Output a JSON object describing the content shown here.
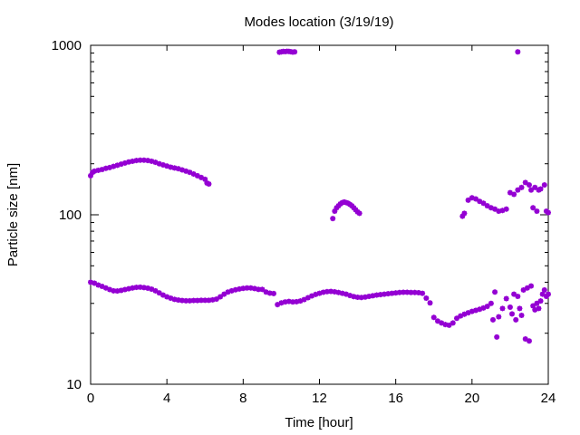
{
  "chart_data": {
    "type": "scatter",
    "title": "Modes location (3/19/19)",
    "xlabel": "Time [hour]",
    "ylabel": "Particle size [nm]",
    "xlim": [
      0,
      24
    ],
    "ylim": [
      10,
      1000
    ],
    "yscale": "log",
    "xticks": [
      0,
      4,
      8,
      12,
      16,
      20,
      24
    ],
    "yticks": [
      10,
      100,
      1000
    ],
    "grid": false,
    "legend": "none",
    "marker_color": "#9400d3",
    "series": [
      {
        "points": [
          [
            0.0,
            40
          ],
          [
            0.2,
            39.5
          ],
          [
            0.4,
            38.5
          ],
          [
            0.6,
            37.8
          ],
          [
            0.8,
            37
          ],
          [
            1.0,
            36.2
          ],
          [
            1.2,
            35.6
          ],
          [
            1.4,
            35.5
          ],
          [
            1.6,
            35.8
          ],
          [
            1.8,
            36.2
          ],
          [
            2.0,
            36.6
          ],
          [
            2.2,
            37
          ],
          [
            2.4,
            37.3
          ],
          [
            2.6,
            37.4
          ],
          [
            2.8,
            37.2
          ],
          [
            3.0,
            36.9
          ],
          [
            3.2,
            36.4
          ],
          [
            3.4,
            35.6
          ],
          [
            3.6,
            34.6
          ],
          [
            3.8,
            33.6
          ],
          [
            4.0,
            32.8
          ],
          [
            4.2,
            32.2
          ],
          [
            4.4,
            31.7
          ],
          [
            4.6,
            31.4
          ],
          [
            4.8,
            31.2
          ],
          [
            5.0,
            31.1
          ],
          [
            5.2,
            31.1
          ],
          [
            5.4,
            31.2
          ],
          [
            5.6,
            31.2
          ],
          [
            5.8,
            31.3
          ],
          [
            6.0,
            31.3
          ],
          [
            6.2,
            31.3
          ],
          [
            6.4,
            31.5
          ],
          [
            6.6,
            31.8
          ],
          [
            6.8,
            32.8
          ],
          [
            7.0,
            34
          ],
          [
            7.2,
            35
          ],
          [
            7.4,
            35.6
          ],
          [
            7.6,
            36.1
          ],
          [
            7.8,
            36.5
          ],
          [
            8.0,
            36.8
          ],
          [
            8.2,
            37
          ],
          [
            8.4,
            37
          ],
          [
            8.6,
            36.7
          ],
          [
            8.8,
            36.3
          ],
          [
            9.0,
            36.3
          ],
          [
            9.2,
            35
          ],
          [
            9.4,
            34.5
          ],
          [
            9.6,
            34.3
          ],
          [
            9.8,
            29.5
          ],
          [
            10.0,
            30.2
          ],
          [
            10.2,
            30.6
          ],
          [
            10.4,
            30.8
          ],
          [
            10.6,
            30.6
          ],
          [
            10.8,
            30.7
          ],
          [
            11.0,
            31
          ],
          [
            11.2,
            31.6
          ],
          [
            11.4,
            32.4
          ],
          [
            11.6,
            33.2
          ],
          [
            11.8,
            33.9
          ],
          [
            12.0,
            34.4
          ],
          [
            12.2,
            34.9
          ],
          [
            12.4,
            35.2
          ],
          [
            12.6,
            35.3
          ],
          [
            12.8,
            35.1
          ],
          [
            13.0,
            34.8
          ],
          [
            13.2,
            34.4
          ],
          [
            13.4,
            34
          ],
          [
            13.6,
            33.4
          ],
          [
            13.8,
            32.9
          ],
          [
            14.0,
            32.6
          ],
          [
            14.2,
            32.5
          ],
          [
            14.4,
            32.7
          ],
          [
            14.6,
            33
          ],
          [
            14.8,
            33.3
          ],
          [
            15.0,
            33.6
          ],
          [
            15.2,
            33.8
          ],
          [
            15.4,
            34
          ],
          [
            15.6,
            34.2
          ],
          [
            15.8,
            34.4
          ],
          [
            16.0,
            34.6
          ],
          [
            16.2,
            34.8
          ],
          [
            16.4,
            34.9
          ],
          [
            16.6,
            34.9
          ],
          [
            16.8,
            34.8
          ],
          [
            17.0,
            34.8
          ],
          [
            17.2,
            34.7
          ],
          [
            17.4,
            34.4
          ],
          [
            17.6,
            32.2
          ],
          [
            17.8,
            30.2
          ],
          [
            18.0,
            24.8
          ],
          [
            18.2,
            23.6
          ],
          [
            18.4,
            23
          ],
          [
            18.6,
            22.5
          ],
          [
            18.8,
            22.3
          ],
          [
            19.0,
            23
          ],
          [
            19.2,
            24.5
          ],
          [
            19.4,
            25.3
          ],
          [
            19.6,
            25.9
          ],
          [
            19.8,
            26.4
          ],
          [
            20.0,
            26.9
          ],
          [
            20.2,
            27.3
          ],
          [
            20.4,
            27.7
          ],
          [
            20.6,
            28.2
          ],
          [
            20.8,
            28.8
          ],
          [
            21.0,
            30
          ],
          [
            21.1,
            24
          ],
          [
            21.2,
            35
          ],
          [
            21.3,
            19
          ],
          [
            21.4,
            25
          ],
          [
            21.6,
            28
          ],
          [
            21.8,
            32
          ],
          [
            22.0,
            28.5
          ],
          [
            22.1,
            26
          ],
          [
            22.2,
            34
          ],
          [
            22.3,
            24
          ],
          [
            22.4,
            33
          ],
          [
            22.5,
            28
          ],
          [
            22.6,
            25.5
          ],
          [
            22.7,
            36
          ],
          [
            22.8,
            18.5
          ],
          [
            22.9,
            37
          ],
          [
            23.0,
            18
          ],
          [
            23.1,
            38
          ],
          [
            23.2,
            29
          ],
          [
            23.3,
            27.5
          ],
          [
            23.4,
            30
          ],
          [
            23.5,
            28
          ],
          [
            23.6,
            31
          ],
          [
            23.7,
            34
          ],
          [
            23.8,
            36
          ],
          [
            23.9,
            33
          ],
          [
            24.0,
            34
          ]
        ]
      },
      {
        "points": [
          [
            0.0,
            170
          ],
          [
            0.1,
            178
          ],
          [
            0.2,
            181
          ],
          [
            0.4,
            183
          ],
          [
            0.6,
            185
          ],
          [
            0.8,
            188
          ],
          [
            1.0,
            190
          ],
          [
            1.2,
            193
          ],
          [
            1.4,
            196
          ],
          [
            1.6,
            199
          ],
          [
            1.8,
            202
          ],
          [
            2.0,
            205
          ],
          [
            2.2,
            207
          ],
          [
            2.4,
            209
          ],
          [
            2.6,
            210
          ],
          [
            2.8,
            210
          ],
          [
            3.0,
            209
          ],
          [
            3.2,
            207
          ],
          [
            3.4,
            204
          ],
          [
            3.6,
            200
          ],
          [
            3.8,
            197
          ],
          [
            4.0,
            194
          ],
          [
            4.2,
            191
          ],
          [
            4.4,
            189
          ],
          [
            4.6,
            187
          ],
          [
            4.8,
            184
          ],
          [
            5.0,
            181
          ],
          [
            5.2,
            178
          ],
          [
            5.4,
            174
          ],
          [
            5.6,
            170
          ],
          [
            5.8,
            166
          ],
          [
            6.0,
            162
          ],
          [
            6.1,
            154
          ],
          [
            6.2,
            152
          ]
        ]
      },
      {
        "points": [
          [
            12.7,
            95
          ],
          [
            12.8,
            105
          ],
          [
            12.9,
            110
          ],
          [
            13.0,
            113
          ],
          [
            13.1,
            116
          ],
          [
            13.2,
            118
          ],
          [
            13.3,
            119
          ],
          [
            13.4,
            118
          ],
          [
            13.5,
            117
          ],
          [
            13.6,
            115
          ],
          [
            13.7,
            113
          ],
          [
            13.8,
            110
          ],
          [
            13.9,
            107
          ],
          [
            14.0,
            104
          ],
          [
            14.1,
            102
          ]
        ]
      },
      {
        "points": [
          [
            19.5,
            98
          ],
          [
            19.6,
            102
          ],
          [
            19.8,
            122
          ],
          [
            20.0,
            126
          ],
          [
            20.2,
            124
          ],
          [
            20.4,
            120
          ],
          [
            20.6,
            117
          ],
          [
            20.8,
            113
          ],
          [
            21.0,
            110
          ],
          [
            21.2,
            108
          ],
          [
            21.4,
            105
          ],
          [
            21.6,
            106
          ],
          [
            21.8,
            108
          ],
          [
            22.0,
            135
          ],
          [
            22.2,
            132
          ],
          [
            22.4,
            140
          ],
          [
            22.6,
            145
          ],
          [
            22.8,
            155
          ],
          [
            23.0,
            150
          ],
          [
            23.1,
            140
          ],
          [
            23.2,
            110
          ],
          [
            23.3,
            145
          ],
          [
            23.4,
            105
          ],
          [
            23.5,
            140
          ],
          [
            23.6,
            142
          ],
          [
            23.8,
            150
          ],
          [
            23.9,
            105
          ],
          [
            24.0,
            103
          ]
        ]
      },
      {
        "points": [
          [
            9.9,
            910
          ],
          [
            10.0,
            915
          ],
          [
            10.1,
            920
          ],
          [
            10.2,
            918
          ],
          [
            10.3,
            922
          ],
          [
            10.4,
            920
          ],
          [
            10.5,
            916
          ],
          [
            10.6,
            912
          ],
          [
            10.7,
            915
          ],
          [
            22.4,
            915
          ]
        ]
      }
    ]
  }
}
